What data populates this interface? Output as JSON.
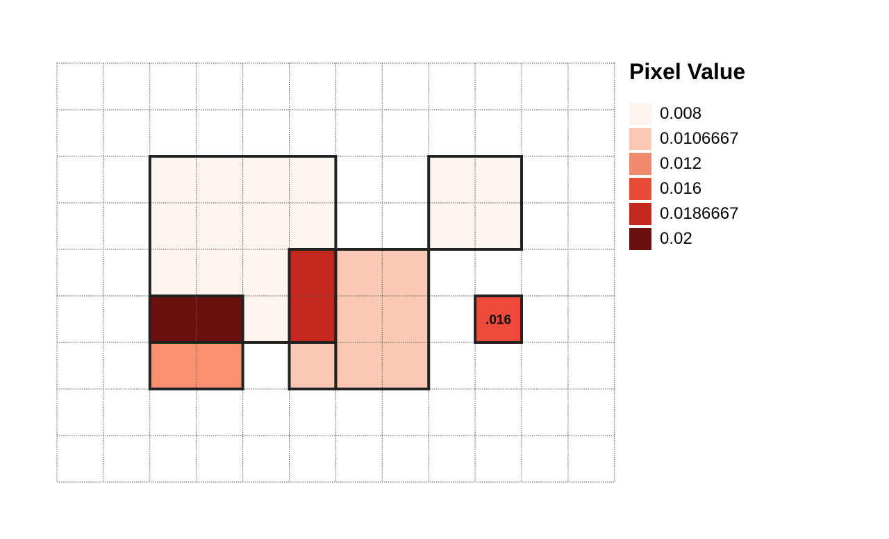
{
  "chart_data": {
    "type": "heatmap",
    "title": "",
    "xlabel": "",
    "ylabel": "",
    "grid": true,
    "n_cols": 12,
    "n_rows": 9,
    "cells": [
      {
        "row": 2,
        "col": 2,
        "value": 0.008
      },
      {
        "row": 2,
        "col": 3,
        "value": 0.008
      },
      {
        "row": 2,
        "col": 4,
        "value": 0.008
      },
      {
        "row": 2,
        "col": 5,
        "value": 0.008
      },
      {
        "row": 2,
        "col": 8,
        "value": 0.008
      },
      {
        "row": 2,
        "col": 9,
        "value": 0.008
      },
      {
        "row": 3,
        "col": 2,
        "value": 0.008
      },
      {
        "row": 3,
        "col": 3,
        "value": 0.008
      },
      {
        "row": 3,
        "col": 4,
        "value": 0.008
      },
      {
        "row": 3,
        "col": 5,
        "value": 0.008
      },
      {
        "row": 3,
        "col": 8,
        "value": 0.008
      },
      {
        "row": 3,
        "col": 9,
        "value": 0.008
      },
      {
        "row": 4,
        "col": 2,
        "value": 0.008
      },
      {
        "row": 4,
        "col": 3,
        "value": 0.008
      },
      {
        "row": 4,
        "col": 4,
        "value": 0.008
      },
      {
        "row": 4,
        "col": 5,
        "value": 0.0186667
      },
      {
        "row": 4,
        "col": 6,
        "value": 0.0106667
      },
      {
        "row": 4,
        "col": 7,
        "value": 0.0106667
      },
      {
        "row": 5,
        "col": 2,
        "value": 0.02
      },
      {
        "row": 5,
        "col": 3,
        "value": 0.02
      },
      {
        "row": 5,
        "col": 4,
        "value": 0.008
      },
      {
        "row": 5,
        "col": 5,
        "value": 0.0186667
      },
      {
        "row": 5,
        "col": 6,
        "value": 0.0106667
      },
      {
        "row": 5,
        "col": 7,
        "value": 0.0106667
      },
      {
        "row": 5,
        "col": 9,
        "value": 0.016,
        "label": ".016"
      },
      {
        "row": 6,
        "col": 2,
        "value": 0.012
      },
      {
        "row": 6,
        "col": 3,
        "value": 0.012
      },
      {
        "row": 6,
        "col": 5,
        "value": 0.0106667
      },
      {
        "row": 6,
        "col": 6,
        "value": 0.0106667
      },
      {
        "row": 6,
        "col": 7,
        "value": 0.0106667
      }
    ],
    "regions": [
      {
        "row0": 2,
        "col0": 2,
        "row1": 5,
        "col1": 5
      },
      {
        "row0": 2,
        "col0": 8,
        "row1": 3,
        "col1": 9
      },
      {
        "row0": 4,
        "col0": 5,
        "row1": 5,
        "col1": 5
      },
      {
        "row0": 4,
        "col0": 6,
        "row1": 6,
        "col1": 7
      },
      {
        "row0": 5,
        "col0": 2,
        "row1": 5,
        "col1": 3
      },
      {
        "row0": 6,
        "col0": 2,
        "row1": 6,
        "col1": 3
      },
      {
        "row0": 6,
        "col0": 5,
        "row1": 6,
        "col1": 5
      },
      {
        "row0": 5,
        "col0": 9,
        "row1": 5,
        "col1": 9
      }
    ],
    "legend": {
      "title": "Pixel Value",
      "position": "right",
      "items": [
        {
          "label": "0.008",
          "color": "#fdf3ef"
        },
        {
          "label": "0.0106667",
          "color": "#fbc9b4"
        },
        {
          "label": "0.012",
          "color": "#f1896e"
        },
        {
          "label": "0.016",
          "color": "#e84a36"
        },
        {
          "label": "0.0186667",
          "color": "#c4271d"
        },
        {
          "label": "0.02",
          "color": "#6b0e0e"
        }
      ]
    },
    "colors": {
      "0.008": "#fdf3ef",
      "0.0106667": "#fbc9b4",
      "0.012": "#fb9070",
      "0.016": "#ec4b3a",
      "0.0186667": "#c4271d",
      "0.02": "#6b0e0e"
    }
  }
}
